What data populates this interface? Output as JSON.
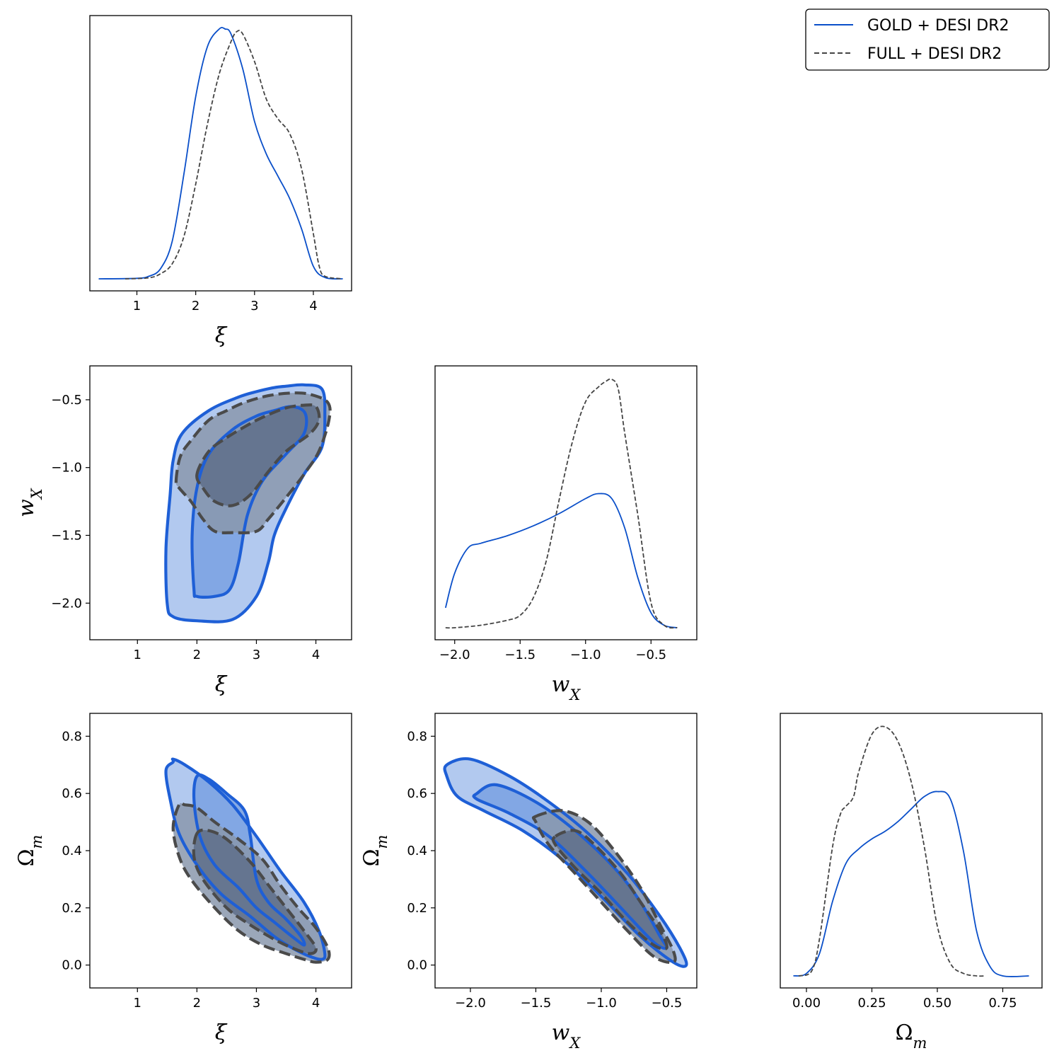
{
  "colors": {
    "gold": "#0a4fc9",
    "full": "#444444",
    "gold_fill_outer": "#aec6ee",
    "gold_fill_inner": "#7fa5e3",
    "full_fill_outer": "#8a98ad",
    "full_fill_inner": "#5f6f8a"
  },
  "legend": {
    "entries": [
      {
        "label": "GOLD + DESI DR2",
        "style": "solid",
        "color": "#0a4fc9"
      },
      {
        "label": "FULL + DESI DR2",
        "style": "dashed",
        "color": "#444444"
      }
    ]
  },
  "chart_data": [
    {
      "panel": "xi-1d",
      "type": "line",
      "xlabel": "ξ",
      "xlim": [
        0.2,
        4.65
      ],
      "xticks": [
        "1",
        "2",
        "3",
        "4"
      ],
      "series": [
        {
          "name": "GOLD + DESI DR2",
          "style": "solid",
          "x": [
            0.35,
            1.0,
            1.2,
            1.4,
            1.6,
            1.8,
            2.0,
            2.2,
            2.4,
            2.5,
            2.6,
            2.8,
            3.0,
            3.2,
            3.4,
            3.6,
            3.8,
            4.0,
            4.2,
            4.5
          ],
          "y": [
            0.0,
            0.002,
            0.01,
            0.04,
            0.15,
            0.42,
            0.73,
            0.93,
            1.0,
            1.0,
            0.98,
            0.84,
            0.63,
            0.5,
            0.41,
            0.32,
            0.2,
            0.05,
            0.005,
            0.0
          ]
        },
        {
          "name": "FULL + DESI DR2",
          "style": "dashed",
          "x": [
            0.8,
            1.2,
            1.4,
            1.6,
            1.8,
            2.0,
            2.2,
            2.4,
            2.6,
            2.7,
            2.8,
            3.0,
            3.2,
            3.4,
            3.6,
            3.8,
            4.0,
            4.1,
            4.2,
            4.5
          ],
          "y": [
            0.0,
            0.004,
            0.02,
            0.06,
            0.17,
            0.38,
            0.62,
            0.82,
            0.95,
            0.99,
            0.98,
            0.87,
            0.72,
            0.64,
            0.58,
            0.44,
            0.18,
            0.05,
            0.01,
            0.0
          ]
        }
      ]
    },
    {
      "panel": "wx-1d",
      "type": "line",
      "xlabel": "w_X",
      "xlim": [
        -2.15,
        -0.15
      ],
      "xticks": [
        "−2.0",
        "−1.5",
        "−1.0",
        "−0.5"
      ],
      "series": [
        {
          "name": "GOLD + DESI DR2",
          "style": "solid",
          "x": [
            -2.07,
            -2.0,
            -1.9,
            -1.8,
            -1.6,
            -1.4,
            -1.2,
            -1.0,
            -0.9,
            -0.8,
            -0.7,
            -0.6,
            -0.5,
            -0.4,
            -0.3
          ],
          "y": [
            0.08,
            0.22,
            0.32,
            0.34,
            0.37,
            0.41,
            0.46,
            0.52,
            0.54,
            0.52,
            0.4,
            0.2,
            0.06,
            0.01,
            0.0
          ]
        },
        {
          "name": "FULL + DESI DR2",
          "style": "dashed",
          "x": [
            -2.07,
            -2.0,
            -1.8,
            -1.6,
            -1.5,
            -1.4,
            -1.3,
            -1.2,
            -1.1,
            -1.0,
            -0.9,
            -0.85,
            -0.8,
            -0.75,
            -0.7,
            -0.6,
            -0.5,
            -0.4,
            -0.3
          ],
          "y": [
            0.0,
            0.0,
            0.01,
            0.03,
            0.05,
            0.12,
            0.27,
            0.52,
            0.75,
            0.91,
            0.97,
            0.99,
            1.0,
            0.96,
            0.78,
            0.45,
            0.1,
            0.01,
            0.0
          ]
        }
      ]
    },
    {
      "panel": "om-1d",
      "type": "line",
      "xlabel": "Ω_m",
      "xlim": [
        -0.1,
        0.9
      ],
      "xticks": [
        "0.00",
        "0.25",
        "0.50",
        "0.75"
      ],
      "series": [
        {
          "name": "GOLD + DESI DR2",
          "style": "solid",
          "x": [
            -0.05,
            0.0,
            0.05,
            0.1,
            0.15,
            0.2,
            0.25,
            0.3,
            0.35,
            0.4,
            0.45,
            0.5,
            0.55,
            0.6,
            0.65,
            0.7,
            0.75,
            0.85
          ],
          "y": [
            0.0,
            0.01,
            0.09,
            0.3,
            0.45,
            0.51,
            0.55,
            0.58,
            0.62,
            0.67,
            0.72,
            0.74,
            0.71,
            0.5,
            0.18,
            0.04,
            0.0,
            0.0
          ]
        },
        {
          "name": "FULL + DESI DR2",
          "style": "dashed",
          "x": [
            -0.03,
            0.02,
            0.05,
            0.1,
            0.13,
            0.15,
            0.18,
            0.2,
            0.25,
            0.3,
            0.35,
            0.4,
            0.45,
            0.5,
            0.55,
            0.6,
            0.65,
            0.68
          ],
          "y": [
            0.0,
            0.02,
            0.15,
            0.52,
            0.65,
            0.68,
            0.72,
            0.82,
            0.97,
            1.0,
            0.94,
            0.78,
            0.52,
            0.2,
            0.05,
            0.01,
            0.0,
            0.0
          ]
        }
      ]
    },
    {
      "panel": "xi-wx",
      "type": "contour",
      "xlabel": "ξ",
      "ylabel": "w_X",
      "xlim": [
        0.2,
        4.6
      ],
      "ylim": [
        -2.27,
        -0.25
      ],
      "xticks": [
        "1",
        "2",
        "3",
        "4"
      ],
      "yticks": [
        "−2.0",
        "−1.5",
        "−1.0",
        "−0.5"
      ],
      "contours": [
        {
          "name": "GOLD + DESI DR2",
          "level": "outer",
          "x": [
            1.5,
            1.48,
            1.55,
            1.6,
            1.75,
            2.2,
            2.7,
            3.0,
            3.3,
            3.5,
            3.8,
            4.1,
            4.15,
            4.1,
            3.8,
            3.5,
            3.3,
            3.2,
            3.0,
            2.6,
            2.0,
            1.6
          ],
          "y": [
            -2.0,
            -1.6,
            -1.2,
            -0.95,
            -0.75,
            -0.58,
            -0.48,
            -0.44,
            -0.41,
            -0.4,
            -0.39,
            -0.42,
            -0.6,
            -0.85,
            -1.05,
            -1.3,
            -1.5,
            -1.7,
            -1.95,
            -2.12,
            -2.13,
            -2.1
          ]
        },
        {
          "name": "GOLD + DESI DR2",
          "level": "inner",
          "x": [
            1.95,
            1.92,
            2.0,
            2.2,
            2.6,
            3.0,
            3.3,
            3.6,
            3.82,
            3.8,
            3.5,
            3.1,
            2.85,
            2.7,
            2.55,
            2.3,
            2.0
          ],
          "y": [
            -1.9,
            -1.5,
            -1.15,
            -0.9,
            -0.72,
            -0.62,
            -0.58,
            -0.55,
            -0.6,
            -0.75,
            -0.9,
            -1.1,
            -1.35,
            -1.7,
            -1.9,
            -1.95,
            -1.95
          ]
        },
        {
          "name": "FULL + DESI DR2",
          "level": "outer",
          "x": [
            1.65,
            1.72,
            1.9,
            2.2,
            2.5,
            2.8,
            3.2,
            3.6,
            3.9,
            4.2,
            4.22,
            4.05,
            3.8,
            3.5,
            3.2,
            3.0,
            2.6,
            2.3,
            2.1,
            1.9,
            1.7
          ],
          "y": [
            -1.1,
            -0.92,
            -0.8,
            -0.65,
            -0.58,
            -0.52,
            -0.47,
            -0.45,
            -0.46,
            -0.52,
            -0.65,
            -0.88,
            -1.05,
            -1.22,
            -1.38,
            -1.47,
            -1.48,
            -1.47,
            -1.38,
            -1.25,
            -1.15
          ]
        },
        {
          "name": "FULL + DESI DR2",
          "level": "inner",
          "x": [
            2.0,
            2.2,
            2.5,
            2.8,
            3.1,
            3.5,
            3.8,
            4.0,
            4.05,
            3.9,
            3.5,
            3.2,
            2.9,
            2.6,
            2.3,
            2.1
          ],
          "y": [
            -1.05,
            -0.88,
            -0.78,
            -0.7,
            -0.63,
            -0.56,
            -0.54,
            -0.55,
            -0.65,
            -0.75,
            -0.88,
            -1.03,
            -1.2,
            -1.28,
            -1.25,
            -1.15
          ]
        }
      ]
    },
    {
      "panel": "xi-om",
      "type": "contour",
      "xlabel": "ξ",
      "ylabel": "Ω_m",
      "xlim": [
        0.2,
        4.6
      ],
      "ylim": [
        -0.08,
        0.88
      ],
      "xticks": [
        "1",
        "2",
        "3",
        "4"
      ],
      "yticks": [
        "0.0",
        "0.2",
        "0.4",
        "0.6",
        "0.8"
      ],
      "contours": [
        {
          "name": "GOLD + DESI DR2",
          "level": "outer",
          "x": [
            1.6,
            1.48,
            1.55,
            1.7,
            2.0,
            2.4,
            2.9,
            3.3,
            3.6,
            3.9,
            4.1,
            4.15,
            4.05,
            3.8,
            3.4,
            3.0,
            2.6,
            2.2,
            1.8,
            1.6
          ],
          "y": [
            0.71,
            0.68,
            0.58,
            0.46,
            0.35,
            0.25,
            0.17,
            0.1,
            0.06,
            0.03,
            0.02,
            0.04,
            0.12,
            0.22,
            0.33,
            0.45,
            0.56,
            0.64,
            0.7,
            0.72
          ]
        },
        {
          "name": "GOLD + DESI DR2",
          "level": "inner",
          "x": [
            2.0,
            1.95,
            2.05,
            2.3,
            2.7,
            3.0,
            3.3,
            3.6,
            3.8,
            3.75,
            3.5,
            3.2,
            3.0,
            2.9,
            2.8,
            2.5,
            2.2
          ],
          "y": [
            0.66,
            0.58,
            0.45,
            0.35,
            0.27,
            0.2,
            0.15,
            0.1,
            0.07,
            0.1,
            0.16,
            0.22,
            0.3,
            0.45,
            0.54,
            0.6,
            0.65
          ]
        },
        {
          "name": "FULL + DESI DR2",
          "level": "outer",
          "x": [
            1.7,
            1.6,
            1.7,
            1.9,
            2.3,
            2.7,
            3.1,
            3.5,
            3.8,
            4.0,
            4.2,
            4.2,
            4.0,
            3.7,
            3.4,
            3.1,
            2.7,
            2.3,
            2.0,
            1.8
          ],
          "y": [
            0.56,
            0.48,
            0.38,
            0.3,
            0.2,
            0.12,
            0.07,
            0.04,
            0.02,
            0.01,
            0.02,
            0.06,
            0.13,
            0.2,
            0.28,
            0.37,
            0.44,
            0.5,
            0.55,
            0.56
          ]
        },
        {
          "name": "FULL + DESI DR2",
          "level": "inner",
          "x": [
            2.0,
            1.95,
            2.1,
            2.5,
            2.9,
            3.3,
            3.6,
            3.9,
            4.0,
            3.8,
            3.5,
            3.2,
            2.9,
            2.5,
            2.2
          ],
          "y": [
            0.46,
            0.38,
            0.3,
            0.2,
            0.14,
            0.09,
            0.06,
            0.04,
            0.06,
            0.12,
            0.2,
            0.28,
            0.36,
            0.44,
            0.47
          ]
        }
      ]
    },
    {
      "panel": "wx-om",
      "type": "contour",
      "xlabel": "w_X",
      "ylabel": "Ω_m",
      "xlim": [
        -2.27,
        -0.27
      ],
      "ylim": [
        -0.08,
        0.88
      ],
      "xticks": [
        "−2.0",
        "−1.5",
        "−1.0",
        "−0.5"
      ],
      "yticks": [
        "0.0",
        "0.2",
        "0.4",
        "0.6",
        "0.8"
      ],
      "contours": [
        {
          "name": "GOLD + DESI DR2",
          "level": "outer",
          "x": [
            -2.18,
            -2.0,
            -1.7,
            -1.4,
            -1.1,
            -0.8,
            -0.55,
            -0.4,
            -0.35,
            -0.45,
            -0.7,
            -1.0,
            -1.3,
            -1.6,
            -1.9,
            -2.1,
            -2.18
          ],
          "y": [
            0.7,
            0.72,
            0.66,
            0.57,
            0.46,
            0.32,
            0.17,
            0.06,
            0.0,
            0.01,
            0.1,
            0.24,
            0.37,
            0.47,
            0.54,
            0.59,
            0.66
          ]
        },
        {
          "name": "GOLD + DESI DR2",
          "level": "inner",
          "x": [
            -1.95,
            -1.8,
            -1.5,
            -1.2,
            -0.9,
            -0.7,
            -0.55,
            -0.5,
            -0.6,
            -0.85,
            -1.1,
            -1.4,
            -1.7,
            -1.95
          ],
          "y": [
            0.6,
            0.63,
            0.57,
            0.47,
            0.34,
            0.22,
            0.1,
            0.06,
            0.08,
            0.2,
            0.32,
            0.45,
            0.53,
            0.58
          ]
        },
        {
          "name": "FULL + DESI DR2",
          "level": "outer",
          "x": [
            -1.5,
            -1.3,
            -1.1,
            -0.9,
            -0.7,
            -0.55,
            -0.45,
            -0.45,
            -0.6,
            -0.8,
            -1.0,
            -1.2,
            -1.4,
            -1.5
          ],
          "y": [
            0.52,
            0.54,
            0.5,
            0.4,
            0.27,
            0.14,
            0.05,
            0.01,
            0.03,
            0.12,
            0.22,
            0.32,
            0.42,
            0.5
          ]
        },
        {
          "name": "FULL + DESI DR2",
          "level": "inner",
          "x": [
            -1.35,
            -1.2,
            -1.05,
            -0.85,
            -0.7,
            -0.55,
            -0.5,
            -0.6,
            -0.8,
            -1.0,
            -1.2,
            -1.35
          ],
          "y": [
            0.45,
            0.47,
            0.42,
            0.32,
            0.22,
            0.12,
            0.06,
            0.07,
            0.15,
            0.25,
            0.34,
            0.42
          ]
        }
      ]
    }
  ]
}
